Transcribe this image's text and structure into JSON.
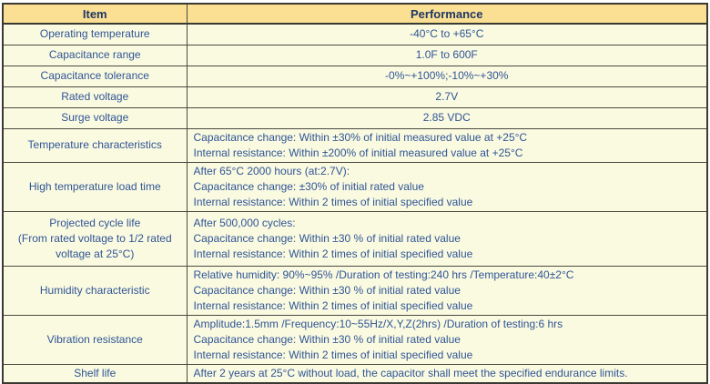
{
  "colors": {
    "header_bg": "#fbdf93",
    "body_bg": "#fafae0",
    "header_text": "#1f3864",
    "body_text": "#2f5496",
    "border": "#4a4a42",
    "outer_border": "#3a3a34"
  },
  "table": {
    "headers": {
      "item": "Item",
      "performance": "Performance"
    },
    "rows": [
      {
        "item": "Operating temperature",
        "performance": [
          "-40°C to +65°C"
        ]
      },
      {
        "item": "Capacitance range",
        "performance": [
          "1.0F to 600F"
        ]
      },
      {
        "item": "Capacitance tolerance",
        "performance": [
          "-0%~+100%;-10%~+30%"
        ]
      },
      {
        "item": "Rated voltage",
        "performance": [
          "2.7V"
        ]
      },
      {
        "item": "Surge voltage",
        "performance": [
          "2.85 VDC"
        ]
      },
      {
        "item": "Temperature characteristics",
        "performance": [
          "Capacitance change: Within ±30% of initial measured value at +25°C",
          "Internal resistance: Within ±200% of initial measured value at +25°C"
        ]
      },
      {
        "item": "High temperature load time",
        "performance": [
          "After 65°C 2000 hours (at:2.7V):",
          "Capacitance change: ±30% of initial rated value",
          "Internal resistance: Within 2 times of initial specified value"
        ]
      },
      {
        "item": [
          "Projected cycle life",
          "(From rated voltage to 1/2 rated",
          "voltage at 25°C)"
        ],
        "performance": [
          "After 500,000 cycles:",
          "Capacitance change: Within ±30 % of initial rated value",
          "Internal resistance: Within 2 times of initial specified value"
        ]
      },
      {
        "item": "Humidity characteristic",
        "performance": [
          "Relative humidity: 90%~95% /Duration of testing:240 hrs /Temperature:40±2°C",
          "Capacitance change: Within ±30 % of initial rated value",
          "Internal resistance: Within 2 times of initial specified value"
        ]
      },
      {
        "item": "Vibration resistance",
        "performance": [
          "Amplitude:1.5mm /Frequency:10~55Hz/X,Y,Z(2hrs) /Duration of testing:6 hrs",
          "Capacitance change: Within ±30 % of initial rated value",
          "Internal resistance: Within 2 times of initial specified value"
        ]
      },
      {
        "item": "Shelf life",
        "performance": [
          "After 2 years at 25°C without load, the capacitor shall meet the specified endurance limits."
        ]
      }
    ]
  }
}
